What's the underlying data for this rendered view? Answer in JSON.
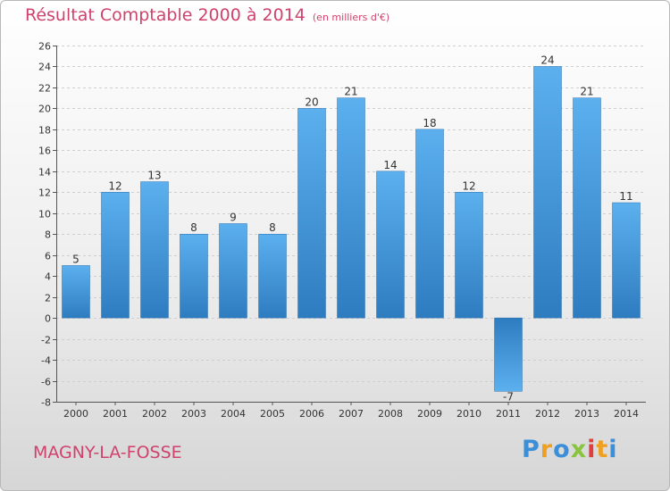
{
  "chart_data": {
    "type": "bar",
    "title": "Résultat Comptable 2000 à 2014",
    "subtitle": "(en milliers d'€)",
    "categories": [
      "2000",
      "2001",
      "2002",
      "2003",
      "2004",
      "2005",
      "2006",
      "2007",
      "2008",
      "2009",
      "2010",
      "2011",
      "2012",
      "2013",
      "2014"
    ],
    "values": [
      5,
      12,
      13,
      8,
      9,
      8,
      20,
      21,
      14,
      18,
      12,
      -7,
      24,
      21,
      11
    ],
    "xlabel": "",
    "ylabel": "",
    "ylim": [
      -8,
      26
    ],
    "yticks": [
      -8,
      -6,
      -4,
      -2,
      0,
      2,
      4,
      6,
      8,
      10,
      12,
      14,
      16,
      18,
      20,
      22,
      24,
      26
    ],
    "grid": true,
    "colors": {
      "bar": "#4d9ee0",
      "title": "#d0426e"
    }
  },
  "commune": "MAGNY-LA-FOSSE",
  "logo": {
    "letters": [
      "P",
      "r",
      "o",
      "x",
      "i",
      "t",
      "i"
    ],
    "colors": [
      "#3a8fd8",
      "#f0a020",
      "#3a8fd8",
      "#8ac43f",
      "#e23c3c",
      "#f0a020",
      "#3a8fd8"
    ]
  }
}
